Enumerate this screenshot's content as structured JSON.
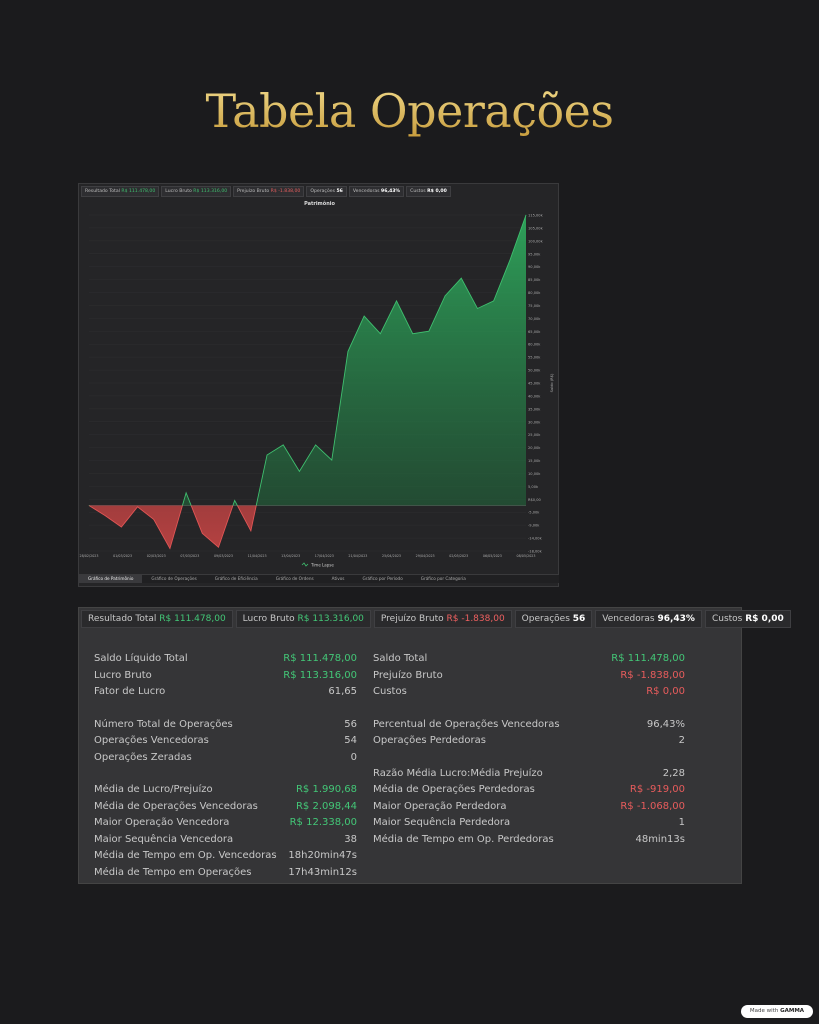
{
  "page": {
    "title": "Tabela Operações"
  },
  "mini_summary": [
    {
      "label": "Resultado Total",
      "value": "R$ 111.478,00",
      "tone": "pos"
    },
    {
      "label": "Lucro Bruto",
      "value": "R$ 113.316,00",
      "tone": "pos"
    },
    {
      "label": "Prejuízo Bruto",
      "value": "R$ -1.838,00",
      "tone": "neg"
    },
    {
      "label": "Operações",
      "value": "56",
      "tone": "bold"
    },
    {
      "label": "Vencedoras",
      "value": "96,43%",
      "tone": "bold"
    },
    {
      "label": "Custos",
      "value": "R$ 0,00",
      "tone": "bold"
    }
  ],
  "chart_data": {
    "type": "area",
    "title": "Patrimônio",
    "ylabel": "Saldo (R$)",
    "legend": "Time Lapse",
    "ylim": [
      -18000,
      115000
    ],
    "y_ticks": [
      "115,00k",
      "105,00k",
      "100,00k",
      "95,00k",
      "90,00k",
      "85,00k",
      "80,00k",
      "75,00k",
      "70,00k",
      "65,00k",
      "60,00k",
      "55,00k",
      "50,00k",
      "45,00k",
      "40,00k",
      "35,00k",
      "30,00k",
      "25,00k",
      "20,00k",
      "15,00k",
      "10,00k",
      "5,00k",
      "R$0,00",
      "-5,00k",
      "-9,00k",
      "-14,00k",
      "-18,00k"
    ],
    "x_ticks": [
      "28/02/2023",
      "01/03/2023",
      "02/03/2023",
      "07/03/2023",
      "09/03/2023",
      "11/04/2023",
      "13/04/2023",
      "17/04/2023",
      "21/04/2023",
      "25/04/2023",
      "29/04/2023",
      "02/05/2023",
      "06/05/2023",
      "08/05/2023"
    ],
    "values": [
      0,
      -4000,
      -8500,
      -500,
      -5500,
      -17000,
      5000,
      -11000,
      -16500,
      2000,
      -10000,
      20000,
      24000,
      13500,
      24000,
      18000,
      61000,
      75000,
      68000,
      81000,
      68000,
      69000,
      83000,
      90000,
      78000,
      81000,
      97000,
      115000
    ]
  },
  "tabs": [
    "Gráfico de Patrimônio",
    "Gráfico de Operações",
    "Gráfico de Eficiência",
    "Gráfico de Ordens",
    "Ativos",
    "Gráfico por Período",
    "Gráfico por Categoria"
  ],
  "summary": [
    {
      "label": "Resultado Total",
      "value": "R$ 111.478,00",
      "tone": "pos"
    },
    {
      "label": "Lucro Bruto",
      "value": "R$ 113.316,00",
      "tone": "pos"
    },
    {
      "label": "Prejuízo Bruto",
      "value": "R$ -1.838,00",
      "tone": "neg"
    },
    {
      "label": "Operações",
      "value": "56",
      "tone": "bold"
    },
    {
      "label": "Vencedoras",
      "value": "96,43%",
      "tone": "bold"
    },
    {
      "label": "Custos",
      "value": "R$ 0,00",
      "tone": "bold"
    }
  ],
  "stats_left": [
    {
      "label": "Saldo Líquido Total",
      "value": "R$ 111.478,00",
      "tone": "pos"
    },
    {
      "label": "Lucro Bruto",
      "value": "R$ 113.316,00",
      "tone": "pos"
    },
    {
      "label": "Fator de Lucro",
      "value": "61,65",
      "tone": ""
    },
    {
      "label": "Número Total de Operações",
      "value": "56",
      "tone": ""
    },
    {
      "label": "Operações Vencedoras",
      "value": "54",
      "tone": ""
    },
    {
      "label": "Operações Zeradas",
      "value": "0",
      "tone": ""
    },
    {
      "label": "Média de Lucro/Prejuízo",
      "value": "R$ 1.990,68",
      "tone": "pos"
    },
    {
      "label": "Média de Operações Vencedoras",
      "value": "R$ 2.098,44",
      "tone": "pos"
    },
    {
      "label": "Maior Operação Vencedora",
      "value": "R$ 12.338,00",
      "tone": "pos"
    },
    {
      "label": "Maior Sequência Vencedora",
      "value": "38",
      "tone": ""
    },
    {
      "label": "Média de Tempo em Op. Vencedoras",
      "value": "18h20min47s",
      "tone": ""
    },
    {
      "label": "Média de Tempo em Operações",
      "value": "17h43min12s",
      "tone": ""
    }
  ],
  "stats_right": [
    {
      "label": "Saldo Total",
      "value": "R$ 111.478,00",
      "tone": "pos"
    },
    {
      "label": "Prejuízo Bruto",
      "value": "R$ -1.838,00",
      "tone": "neg"
    },
    {
      "label": "Custos",
      "value": "R$ 0,00",
      "tone": "neg"
    },
    {
      "label": "Percentual de Operações Vencedoras",
      "value": "96,43%",
      "tone": ""
    },
    {
      "label": "Operações Perdedoras",
      "value": "2",
      "tone": ""
    },
    {
      "label": "Razão Média Lucro:Média Prejuízo",
      "value": "2,28",
      "tone": ""
    },
    {
      "label": "Média de Operações Perdedoras",
      "value": "R$ -919,00",
      "tone": "neg"
    },
    {
      "label": "Maior Operação Perdedora",
      "value": "R$ -1.068,00",
      "tone": "neg"
    },
    {
      "label": "Maior Sequência Perdedora",
      "value": "1",
      "tone": ""
    },
    {
      "label": "Média de Tempo em Op. Perdedoras",
      "value": "48min13s",
      "tone": ""
    }
  ],
  "badge": {
    "prefix": "Made with",
    "brand": "GAMMA"
  },
  "colors": {
    "gain": "#3fbf6f",
    "loss": "#e05555",
    "gold": "#d7b65a"
  }
}
